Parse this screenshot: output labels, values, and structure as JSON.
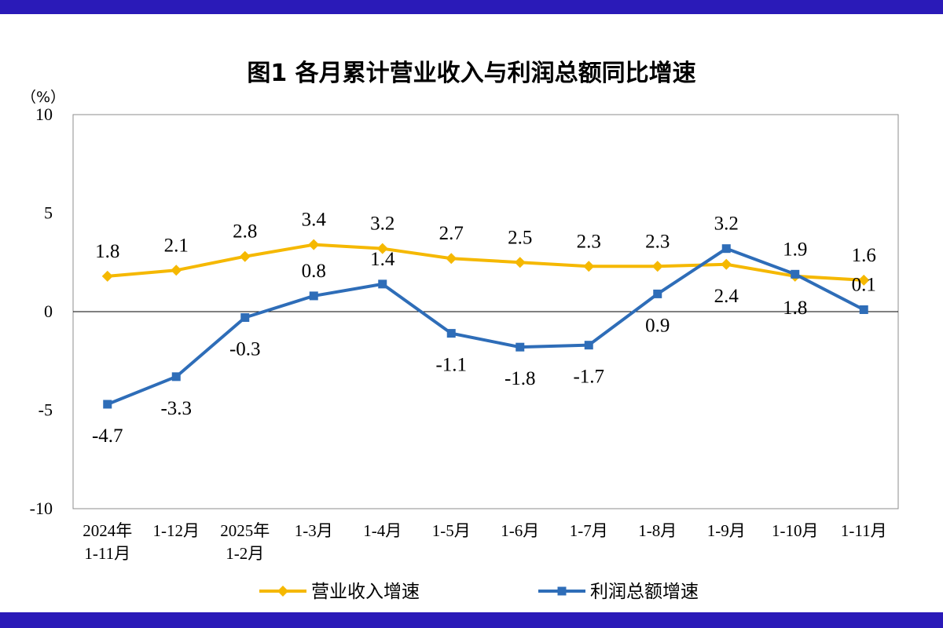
{
  "chart_data": {
    "type": "line",
    "title": "图1  各月累计营业收入与利润总额同比增速",
    "ylabel": "（%）",
    "ylim": [
      -10,
      10
    ],
    "yticks": [
      10,
      5,
      0,
      -5,
      -10
    ],
    "categories": [
      [
        "2024年",
        "1-11月"
      ],
      [
        "1-12月"
      ],
      [
        "2025年",
        "1-2月"
      ],
      [
        "1-3月"
      ],
      [
        "1-4月"
      ],
      [
        "1-5月"
      ],
      [
        "1-6月"
      ],
      [
        "1-7月"
      ],
      [
        "1-8月"
      ],
      [
        "1-9月"
      ],
      [
        "1-10月"
      ],
      [
        "1-11月"
      ]
    ],
    "series": [
      {
        "name": "营业收入增速",
        "color": "#f5b800",
        "marker": "diamond",
        "values": [
          1.8,
          2.1,
          2.8,
          3.4,
          3.2,
          2.7,
          2.5,
          2.3,
          2.3,
          2.4,
          1.8,
          1.6
        ],
        "labels": [
          "1.8",
          "2.1",
          "2.8",
          "3.4",
          "3.2",
          "2.7",
          "2.5",
          "2.3",
          "2.3",
          "2.4",
          "1.8",
          "1.6"
        ],
        "label_side": [
          "above",
          "above",
          "above",
          "above",
          "above",
          "above",
          "above",
          "above",
          "above",
          "below",
          "below",
          "above"
        ]
      },
      {
        "name": "利润总额增速",
        "color": "#2e6db8",
        "marker": "square",
        "values": [
          -4.7,
          -3.3,
          -0.3,
          0.8,
          1.4,
          -1.1,
          -1.8,
          -1.7,
          0.9,
          3.2,
          1.9,
          0.1
        ],
        "labels": [
          "-4.7",
          "-3.3",
          "-0.3",
          "0.8",
          "1.4",
          "-1.1",
          "-1.8",
          "-1.7",
          "0.9",
          "3.2",
          "1.9",
          "0.1"
        ],
        "label_side": [
          "below",
          "below",
          "below",
          "above",
          "above",
          "below",
          "below",
          "below",
          "below",
          "above",
          "above",
          "above"
        ]
      }
    ],
    "grid": false,
    "legend_position": "bottom"
  }
}
